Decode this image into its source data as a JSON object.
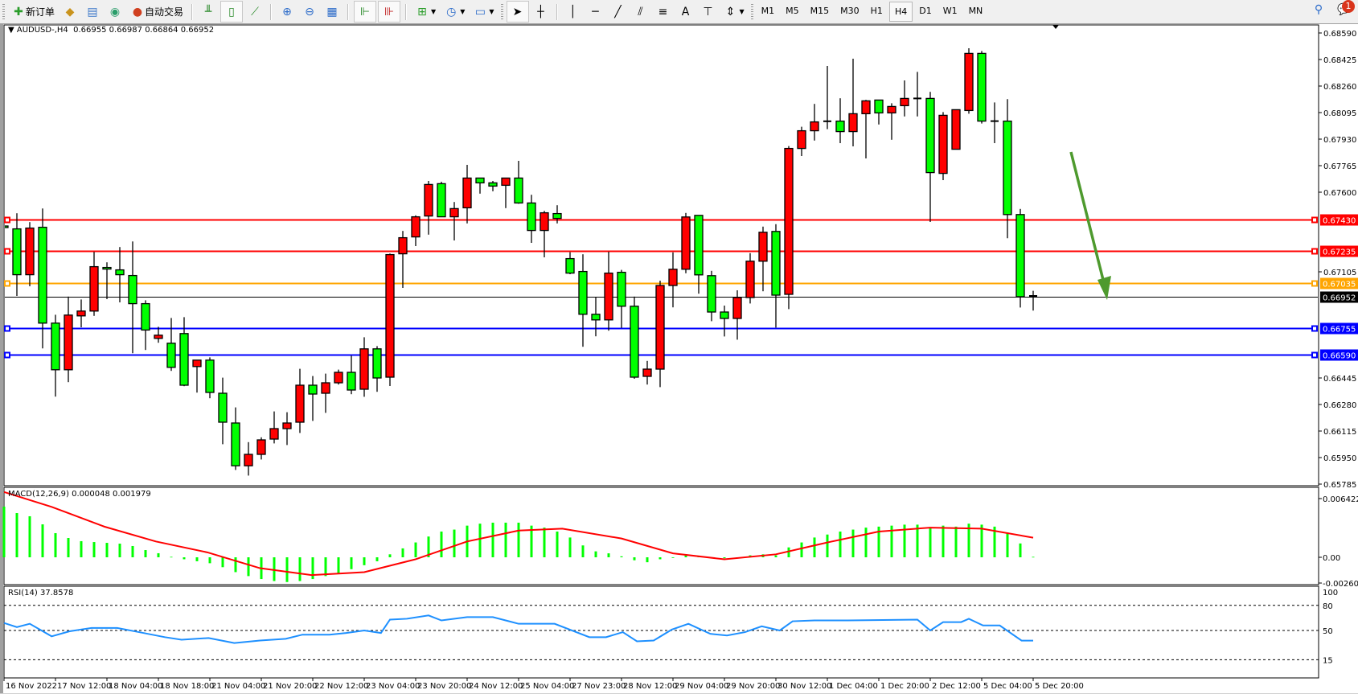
{
  "toolbar": {
    "new_order_label": "新订单",
    "auto_trading_label": "自动交易",
    "timeframes": [
      "M1",
      "M5",
      "M15",
      "M30",
      "H1",
      "H4",
      "D1",
      "W1",
      "MN"
    ],
    "active_timeframe": "H4",
    "notification_count": "1"
  },
  "chart": {
    "symbol_header": "AUDUSD-,H4  0.66955 0.66987 0.66864 0.66952",
    "macd_label": "MACD(12,26,9) 0.000048 0.001979",
    "rsi_label": "RSI(14) 37.8578",
    "colors": {
      "bull": "#ff0000",
      "bear": "#00ff00",
      "macd_hist": "#00ff00",
      "signal": "#ff0000",
      "rsi": "#1e90ff",
      "arrow": "#4e9a2e"
    }
  },
  "chart_data": {
    "type": "candlestick",
    "price_ticks": [
      "0.68590",
      "0.68425",
      "0.68260",
      "0.68095",
      "0.67930",
      "0.67765",
      "0.67600",
      "0.67105",
      "0.66445",
      "0.66280",
      "0.66115",
      "0.65950",
      "0.65785"
    ],
    "price_range": [
      0.65785,
      0.6859
    ],
    "time_labels": [
      "16 Nov 2022",
      "17 Nov 12:00",
      "18 Nov 04:00",
      "18 Nov 18:00",
      "21 Nov 04:00",
      "21 Nov 20:00",
      "22 Nov 12:00",
      "23 Nov 04:00",
      "23 Nov 20:00",
      "24 Nov 12:00",
      "25 Nov 04:00",
      "27 Nov 23:00",
      "28 Nov 12:00",
      "29 Nov 04:00",
      "29 Nov 20:00",
      "30 Nov 12:00",
      "1 Dec 04:00",
      "1 Dec 20:00",
      "2 Dec 12:00",
      "5 Dec 04:00",
      "5 Dec 20:00"
    ],
    "time_label_every_n_bars": 4,
    "ohlc": [
      [
        0.6739,
        0.6744,
        0.6729,
        0.6738
      ],
      [
        0.67372,
        0.67469,
        0.66955,
        0.67087
      ],
      [
        0.67087,
        0.67414,
        0.67015,
        0.67377
      ],
      [
        0.67382,
        0.67499,
        0.66629,
        0.66786
      ],
      [
        0.66786,
        0.66838,
        0.66329,
        0.66496
      ],
      [
        0.66496,
        0.66951,
        0.66419,
        0.66836
      ],
      [
        0.66831,
        0.66933,
        0.6676,
        0.66861
      ],
      [
        0.66861,
        0.67229,
        0.66831,
        0.67137
      ],
      [
        0.67132,
        0.67164,
        0.66935,
        0.67122
      ],
      [
        0.67117,
        0.67259,
        0.66915,
        0.67087
      ],
      [
        0.67082,
        0.67294,
        0.66599,
        0.66907
      ],
      [
        0.66907,
        0.66928,
        0.66619,
        0.66743
      ],
      [
        0.66691,
        0.66763,
        0.66664,
        0.66711
      ],
      [
        0.66661,
        0.66818,
        0.66489,
        0.66511
      ],
      [
        0.66721,
        0.66823,
        0.66394,
        0.664
      ],
      [
        0.66516,
        0.66556,
        0.66354,
        0.66556
      ],
      [
        0.66556,
        0.66573,
        0.66319,
        0.66355
      ],
      [
        0.6635,
        0.66447,
        0.66033,
        0.6617
      ],
      [
        0.66165,
        0.66262,
        0.65873,
        0.65899
      ],
      [
        0.65899,
        0.66046,
        0.65838,
        0.6597
      ],
      [
        0.6597,
        0.66076,
        0.65938,
        0.6606
      ],
      [
        0.66065,
        0.66237,
        0.66038,
        0.6613
      ],
      [
        0.6613,
        0.66232,
        0.66028,
        0.66165
      ],
      [
        0.6617,
        0.66502,
        0.66103,
        0.664
      ],
      [
        0.664,
        0.66457,
        0.66178,
        0.66345
      ],
      [
        0.6635,
        0.66472,
        0.66228,
        0.66415
      ],
      [
        0.66415,
        0.66497,
        0.66404,
        0.6648
      ],
      [
        0.6648,
        0.66584,
        0.66344,
        0.6637
      ],
      [
        0.66375,
        0.66698,
        0.66328,
        0.66626
      ],
      [
        0.66626,
        0.66643,
        0.66359,
        0.66445
      ],
      [
        0.6645,
        0.67219,
        0.66395,
        0.67212
      ],
      [
        0.67217,
        0.67359,
        0.67005,
        0.67317
      ],
      [
        0.67322,
        0.67456,
        0.67265,
        0.67447
      ],
      [
        0.67452,
        0.6767,
        0.67336,
        0.67648
      ],
      [
        0.67653,
        0.67665,
        0.67447,
        0.67447
      ],
      [
        0.67447,
        0.67539,
        0.673,
        0.67498
      ],
      [
        0.67503,
        0.6777,
        0.67406,
        0.67688
      ],
      [
        0.67688,
        0.67688,
        0.67591,
        0.67658
      ],
      [
        0.67658,
        0.6767,
        0.67606,
        0.67638
      ],
      [
        0.67643,
        0.67688,
        0.67501,
        0.67688
      ],
      [
        0.67688,
        0.67795,
        0.67528,
        0.67533
      ],
      [
        0.67533,
        0.67584,
        0.67285,
        0.67362
      ],
      [
        0.67362,
        0.67484,
        0.67195,
        0.67472
      ],
      [
        0.67467,
        0.67519,
        0.67406,
        0.67437
      ],
      [
        0.67187,
        0.67227,
        0.6709,
        0.67097
      ],
      [
        0.67107,
        0.67214,
        0.66639,
        0.66841
      ],
      [
        0.66841,
        0.66946,
        0.66704,
        0.66806
      ],
      [
        0.66806,
        0.6723,
        0.66739,
        0.67097
      ],
      [
        0.67102,
        0.67117,
        0.66756,
        0.66891
      ],
      [
        0.66891,
        0.66951,
        0.6644,
        0.6645
      ],
      [
        0.66455,
        0.66551,
        0.66404,
        0.665
      ],
      [
        0.665,
        0.6705,
        0.66388,
        0.6702
      ],
      [
        0.6702,
        0.67226,
        0.66884,
        0.67121
      ],
      [
        0.67121,
        0.67471,
        0.67096,
        0.67446
      ],
      [
        0.67456,
        0.67456,
        0.66969,
        0.67086
      ],
      [
        0.67081,
        0.67111,
        0.66798,
        0.66855
      ],
      [
        0.66855,
        0.66895,
        0.66703,
        0.66815
      ],
      [
        0.66815,
        0.6699,
        0.66683,
        0.66945
      ],
      [
        0.66945,
        0.67221,
        0.66908,
        0.67171
      ],
      [
        0.67171,
        0.67386,
        0.66984,
        0.67351
      ],
      [
        0.67356,
        0.67401,
        0.66758,
        0.6696
      ],
      [
        0.66965,
        0.67887,
        0.66873,
        0.67872
      ],
      [
        0.67872,
        0.68007,
        0.67825,
        0.67982
      ],
      [
        0.67982,
        0.68149,
        0.67921,
        0.68037
      ],
      [
        0.68041,
        0.68385,
        0.67992,
        0.68041
      ],
      [
        0.68042,
        0.68184,
        0.67905,
        0.67977
      ],
      [
        0.67977,
        0.6843,
        0.67885,
        0.68088
      ],
      [
        0.68088,
        0.68174,
        0.6781,
        0.68168
      ],
      [
        0.68173,
        0.68173,
        0.68021,
        0.68093
      ],
      [
        0.68093,
        0.68153,
        0.67926,
        0.68133
      ],
      [
        0.68138,
        0.68295,
        0.68071,
        0.68183
      ],
      [
        0.68183,
        0.68348,
        0.68071,
        0.68183
      ],
      [
        0.68183,
        0.68224,
        0.67415,
        0.67722
      ],
      [
        0.67717,
        0.68098,
        0.67675,
        0.68078
      ],
      [
        0.67867,
        0.68113,
        0.67867,
        0.68113
      ],
      [
        0.68108,
        0.68495,
        0.68088,
        0.68463
      ],
      [
        0.68463,
        0.68478,
        0.68027,
        0.68042
      ],
      [
        0.68042,
        0.68158,
        0.67905,
        0.68042
      ],
      [
        0.68042,
        0.68179,
        0.67314,
        0.67461
      ],
      [
        0.67461,
        0.67496,
        0.66883,
        0.6695
      ],
      [
        0.66955,
        0.66987,
        0.66864,
        0.66952
      ]
    ],
    "horizontal_lines": [
      {
        "price": "0.67430",
        "color": "#ff0000"
      },
      {
        "price": "0.67235",
        "color": "#ff0000"
      },
      {
        "price": "0.67035",
        "color": "#ffa500"
      },
      {
        "price": "0.66952",
        "color": "#000000"
      },
      {
        "price": "0.66755",
        "color": "#0000ff"
      },
      {
        "price": "0.66590",
        "color": "#0000ff"
      }
    ],
    "macd": {
      "ticks": [
        "0.006422",
        "0.00",
        "-0.002603"
      ],
      "range": [
        -0.002603,
        0.006422
      ],
      "histogram": [
        0.00512,
        0.00447,
        0.00415,
        0.00333,
        0.00244,
        0.00195,
        0.00163,
        0.00154,
        0.00146,
        0.00138,
        0.00114,
        0.00073,
        0.00041,
        5e-05,
        -0.0002,
        -0.0004,
        -0.0006,
        -0.001,
        -0.0015,
        -0.0019,
        -0.0022,
        -0.0024,
        -0.0025,
        -0.0024,
        -0.0022,
        -0.0019,
        -0.0016,
        -0.0012,
        -0.0008,
        -0.0004,
        0.0003,
        0.0009,
        0.0015,
        0.0021,
        0.0026,
        0.0028,
        0.0032,
        0.0034,
        0.0035,
        0.0035,
        0.0035,
        0.0032,
        0.003,
        0.0026,
        0.002,
        0.0012,
        0.0006,
        0.0004,
        0.0001,
        -0.0003,
        -0.0005,
        -0.0002,
        0,
        0.0002,
        0.0001,
        0,
        -0.0001,
        0,
        0.0002,
        0.0003,
        0.0002,
        0.001,
        0.0015,
        0.002,
        0.0023,
        0.0026,
        0.0028,
        0.003,
        0.0031,
        0.0032,
        0.0033,
        0.0033,
        0.003,
        0.0032,
        0.0031,
        0.0034,
        0.0033,
        0.0031,
        0.0025,
        0.0014,
        4.8e-05
      ],
      "signal_points": [
        [
          0,
          0.0066
        ],
        [
          3.7,
          0.0051
        ],
        [
          7.8,
          0.0031
        ],
        [
          11.8,
          0.0016
        ],
        [
          15.8,
          0.0005
        ],
        [
          19.9,
          -0.0011
        ],
        [
          23.9,
          -0.0018
        ],
        [
          28,
          -0.0015
        ],
        [
          32,
          -0.0002
        ],
        [
          36,
          0.0016
        ],
        [
          40,
          0.0027
        ],
        [
          43.4,
          0.0029
        ],
        [
          48,
          0.0019
        ],
        [
          52,
          0.0004
        ],
        [
          56,
          -0.0002
        ],
        [
          60,
          0.0003
        ],
        [
          64,
          0.0015
        ],
        [
          68,
          0.0026
        ],
        [
          72,
          0.003
        ],
        [
          76,
          0.0029
        ],
        [
          80,
          0.00198
        ]
      ]
    },
    "rsi": {
      "ticks": [
        "100",
        "80",
        "50",
        "15"
      ],
      "levels": [
        80,
        50,
        15
      ],
      "points": [
        [
          0,
          59
        ],
        [
          1,
          54
        ],
        [
          2,
          58
        ],
        [
          3.7,
          43
        ],
        [
          5.1,
          49
        ],
        [
          6.8,
          53
        ],
        [
          8.8,
          53
        ],
        [
          10.5,
          48
        ],
        [
          12.5,
          42
        ],
        [
          13.8,
          39
        ],
        [
          15.9,
          41
        ],
        [
          17.9,
          35
        ],
        [
          19.9,
          38
        ],
        [
          21.9,
          40
        ],
        [
          23.2,
          45
        ],
        [
          25.3,
          45
        ],
        [
          26.6,
          47
        ],
        [
          28,
          50
        ],
        [
          29.3,
          47
        ],
        [
          30,
          63
        ],
        [
          31.3,
          64
        ],
        [
          33,
          68
        ],
        [
          34,
          62
        ],
        [
          36,
          66
        ],
        [
          38,
          66
        ],
        [
          40,
          58
        ],
        [
          42.8,
          58
        ],
        [
          45.5,
          42
        ],
        [
          46.8,
          42
        ],
        [
          48.1,
          48
        ],
        [
          49.2,
          37
        ],
        [
          50.5,
          38
        ],
        [
          51.9,
          51
        ],
        [
          53.2,
          58
        ],
        [
          54.9,
          46
        ],
        [
          56.2,
          44
        ],
        [
          57.6,
          48
        ],
        [
          58.9,
          55
        ],
        [
          60.3,
          50
        ],
        [
          61.3,
          61
        ],
        [
          63,
          62
        ],
        [
          65.6,
          62
        ],
        [
          71,
          63
        ],
        [
          72,
          50
        ],
        [
          73,
          60
        ],
        [
          74.4,
          60
        ],
        [
          75,
          64
        ],
        [
          76.1,
          56
        ],
        [
          77.4,
          56
        ],
        [
          79.1,
          37.9
        ],
        [
          80,
          37.86
        ]
      ]
    }
  }
}
